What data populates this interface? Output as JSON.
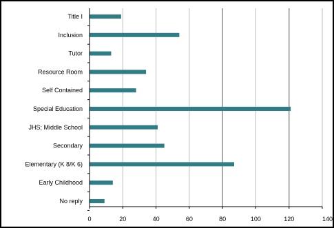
{
  "chart_data": {
    "type": "bar",
    "orientation": "horizontal",
    "categories": [
      "Title I",
      "Inclusion",
      "Tutor",
      "Resource Room",
      "Self Contained",
      "Special Education",
      "JHS; Middle School",
      "Secondary",
      "Elementary (K 8/K 6)",
      "Early Childhood",
      "No reply"
    ],
    "values": [
      19,
      54,
      13,
      34,
      28,
      121,
      41,
      45,
      87,
      14,
      9
    ],
    "xlim": [
      0,
      140
    ],
    "x_ticks": [
      0,
      20,
      40,
      60,
      80,
      100,
      120,
      140
    ],
    "x_tick_labels": [
      "0",
      "20",
      "40",
      "60",
      "80",
      "100",
      "120",
      "140"
    ],
    "title": "",
    "xlabel": "",
    "ylabel": "",
    "grid": "vertical",
    "legend": "none",
    "colors": {
      "bar": "#2e7d87",
      "grid": "#bdbdbd",
      "grid_major": "#8a8a8a",
      "axis": "#000000"
    }
  }
}
